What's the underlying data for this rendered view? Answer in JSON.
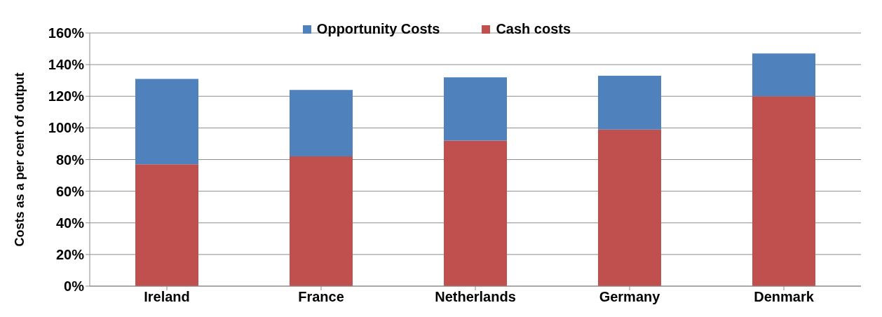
{
  "chart_data": {
    "type": "bar",
    "ylabel": "Costs as a per cent of output",
    "categories": [
      "Ireland",
      "France",
      "Netherlands",
      "Germany",
      "Denmark"
    ],
    "stacked": true,
    "series": [
      {
        "name": "Cash costs",
        "color": "#c0504d",
        "values": [
          77,
          82,
          92,
          99,
          120
        ]
      },
      {
        "name": "Opportunity Costs",
        "color": "#4f81bd",
        "values": [
          54,
          42,
          40,
          34,
          27
        ]
      }
    ],
    "ylim": [
      0,
      160
    ],
    "yticks": [
      {
        "value": 0,
        "label": "0%"
      },
      {
        "value": 20,
        "label": "20%"
      },
      {
        "value": 40,
        "label": "40%"
      },
      {
        "value": 60,
        "label": "60%"
      },
      {
        "value": 80,
        "label": "80%"
      },
      {
        "value": 100,
        "label": "100%"
      },
      {
        "value": 120,
        "label": "120%"
      },
      {
        "value": 140,
        "label": "140%"
      },
      {
        "value": 160,
        "label": "160%"
      }
    ],
    "grid": "y",
    "legend": "top"
  }
}
